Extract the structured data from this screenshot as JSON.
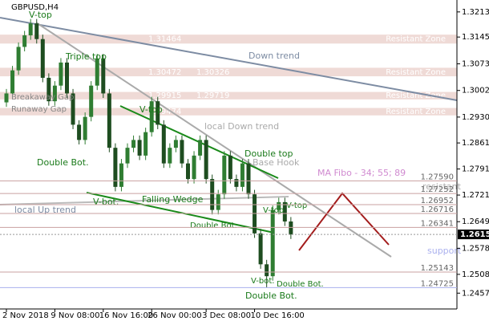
{
  "chart_data": {
    "type": "candlestick",
    "title": "GBPUSD,H4",
    "categories": [
      "2 Nov 2018",
      null,
      null,
      null,
      null,
      null,
      null,
      null,
      "9 Nov 08:00",
      null,
      null,
      null,
      null,
      null,
      null,
      null,
      "16 Nov 16:00",
      null,
      null,
      null,
      null,
      null,
      null,
      null,
      "26 Nov 00:00",
      null,
      null,
      null,
      null,
      null,
      null,
      null,
      null,
      "3 Dec 08:00",
      null,
      null,
      null,
      null,
      null,
      null,
      null,
      "10 Dec 16:00",
      null,
      null,
      null,
      null,
      null,
      null
    ],
    "open": [
      1.297,
      1.2994,
      1.3056,
      1.3119,
      1.315,
      1.3182,
      1.314,
      1.3036,
      1.2973,
      1.3015,
      1.3077,
      1.2994,
      1.291,
      1.2869,
      1.2931,
      1.3015,
      1.3088,
      1.2994,
      1.2848,
      1.2743,
      1.2806,
      1.2848,
      1.2869,
      1.2827,
      1.289,
      1.2973,
      1.291,
      1.2806,
      1.2848,
      1.2869,
      1.2806,
      1.2764,
      1.2827,
      1.2869,
      1.2764,
      1.2681,
      1.2723,
      1.2827,
      1.2764,
      1.2743,
      1.2806,
      1.2723,
      1.2618,
      1.2535,
      1.2503,
      1.2681,
      1.2702,
      1.265
    ],
    "high": [
      1.3006,
      1.3068,
      1.3131,
      1.3162,
      1.3194,
      1.3194,
      1.3152,
      1.3048,
      1.3027,
      1.3089,
      1.3089,
      1.3006,
      1.2922,
      1.2943,
      1.3027,
      1.31,
      1.31,
      1.3006,
      1.286,
      1.2818,
      1.286,
      1.2881,
      1.2881,
      1.2902,
      1.2985,
      1.2985,
      1.2922,
      1.286,
      1.2881,
      1.2881,
      1.2818,
      1.2839,
      1.2881,
      1.2881,
      1.2776,
      1.2735,
      1.2839,
      1.2839,
      1.2776,
      1.2818,
      1.2818,
      1.2735,
      1.263,
      1.2547,
      1.2693,
      1.2714,
      1.2714,
      1.2662
    ],
    "low": [
      1.2958,
      1.2982,
      1.3044,
      1.3107,
      1.3138,
      1.3128,
      1.3024,
      1.2961,
      1.2961,
      1.3003,
      1.2982,
      1.2898,
      1.2857,
      1.2857,
      1.2919,
      1.3003,
      1.2982,
      1.2836,
      1.2731,
      1.2731,
      1.2794,
      1.2836,
      1.2815,
      1.2815,
      1.2878,
      1.2898,
      1.2794,
      1.2794,
      1.2836,
      1.2794,
      1.2752,
      1.2752,
      1.2815,
      1.2752,
      1.2669,
      1.2669,
      1.2711,
      1.2752,
      1.2731,
      1.2731,
      1.2711,
      1.2606,
      1.2523,
      1.2473,
      1.2491,
      1.2669,
      1.2638,
      1.2603
    ],
    "close": [
      1.2994,
      1.3056,
      1.3119,
      1.315,
      1.3182,
      1.314,
      1.3036,
      1.2973,
      1.3015,
      1.3077,
      1.2994,
      1.291,
      1.2869,
      1.2931,
      1.3015,
      1.3088,
      1.2994,
      1.2848,
      1.2743,
      1.2806,
      1.2848,
      1.2869,
      1.2827,
      1.289,
      1.2973,
      1.291,
      1.2806,
      1.2848,
      1.2869,
      1.2806,
      1.2764,
      1.2827,
      1.2869,
      1.2764,
      1.2681,
      1.2723,
      1.2827,
      1.2764,
      1.2743,
      1.2806,
      1.2723,
      1.2618,
      1.2535,
      1.2503,
      1.2681,
      1.2702,
      1.265,
      1.26153
    ],
    "up_color": "#2f7d32",
    "down_color": "#1e4d20",
    "ylim": [
      1.2415,
      1.3245
    ],
    "yticks": [
      {
        "value": 1.3213,
        "label": "1.32130"
      },
      1.31455,
      1.30735,
      {
        "value": 1.3002,
        "label": "1.30020"
      },
      1.29305,
      {
        "value": 1.2861,
        "label": "1.28610"
      },
      {
        "value": 1.2791,
        "label": "1.27910"
      },
      {
        "value": 1.2721,
        "label": "1.27210"
      },
      1.26495,
      {
        "value": 1.2578,
        "label": "1.25780"
      },
      {
        "value": 1.2508,
        "label": "1.25080"
      },
      1.24575
    ],
    "current_price": 1.26153,
    "levels": [
      {
        "value": 1.2759,
        "label": "1.27590"
      },
      1.27252,
      1.26952,
      1.26716,
      1.26341,
      1.25143,
      1.24725
    ],
    "zones": [
      {
        "name": "Resistant Zone",
        "top": 1.3152,
        "bottom": 1.3128,
        "prices": [
          1.31464
        ]
      },
      {
        "name": "Resistant Zone",
        "top": 1.3063,
        "bottom": 1.304,
        "prices": [
          1.30472,
          1.30326
        ]
      },
      {
        "name": "Resistant Zone",
        "top": 1.2998,
        "bottom": 1.2978,
        "prices": [
          1.29915,
          1.29719
        ]
      },
      {
        "name": "Resistant Zone",
        "top": 1.2955,
        "bottom": 1.2935,
        "prices": [
          1.29474
        ]
      }
    ],
    "annotations": [
      "V-top",
      "Triple top",
      "Down trend",
      "local Down trend",
      "Double Bot.",
      "Falling Wedge",
      "local  Up trend",
      "V-bot.",
      "V-top",
      "Double top",
      "Base Hook",
      "MA Fibo - 34; 55; 89",
      "resistant",
      "support",
      "Double Bot.",
      "V-top",
      "V-top",
      "V-bot.",
      "Double Bot.",
      "Double Bot.",
      "Breakaway Gap",
      "Runaway Gap"
    ]
  }
}
